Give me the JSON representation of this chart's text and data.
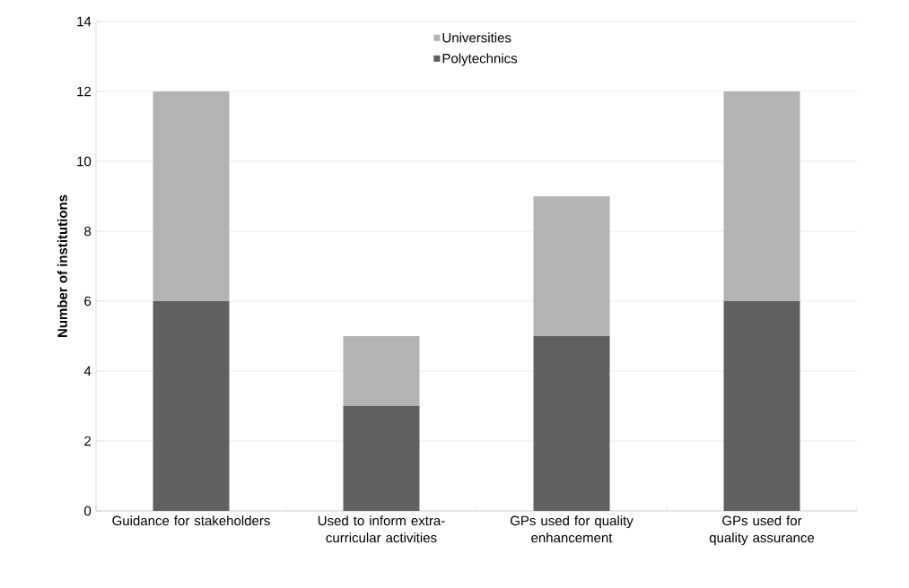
{
  "chart_data": {
    "type": "bar",
    "stacked": true,
    "ylabel": "Number of institutions",
    "categories": [
      "Guidance for stakeholders",
      "Used to inform extra-curricular activities",
      "GPs used for quality enhancement",
      "GPs used for quality assurance"
    ],
    "series": [
      {
        "name": "Polytechnics",
        "color": "#606060",
        "values": [
          6,
          3,
          5,
          6
        ]
      },
      {
        "name": "Universities",
        "color": "#b3b3b3",
        "values": [
          6,
          2,
          4,
          6
        ]
      }
    ],
    "ylim": [
      0,
      14
    ],
    "yticks": [
      0,
      2,
      4,
      6,
      8,
      10,
      12,
      14
    ],
    "grid": "y",
    "legend": "top"
  }
}
